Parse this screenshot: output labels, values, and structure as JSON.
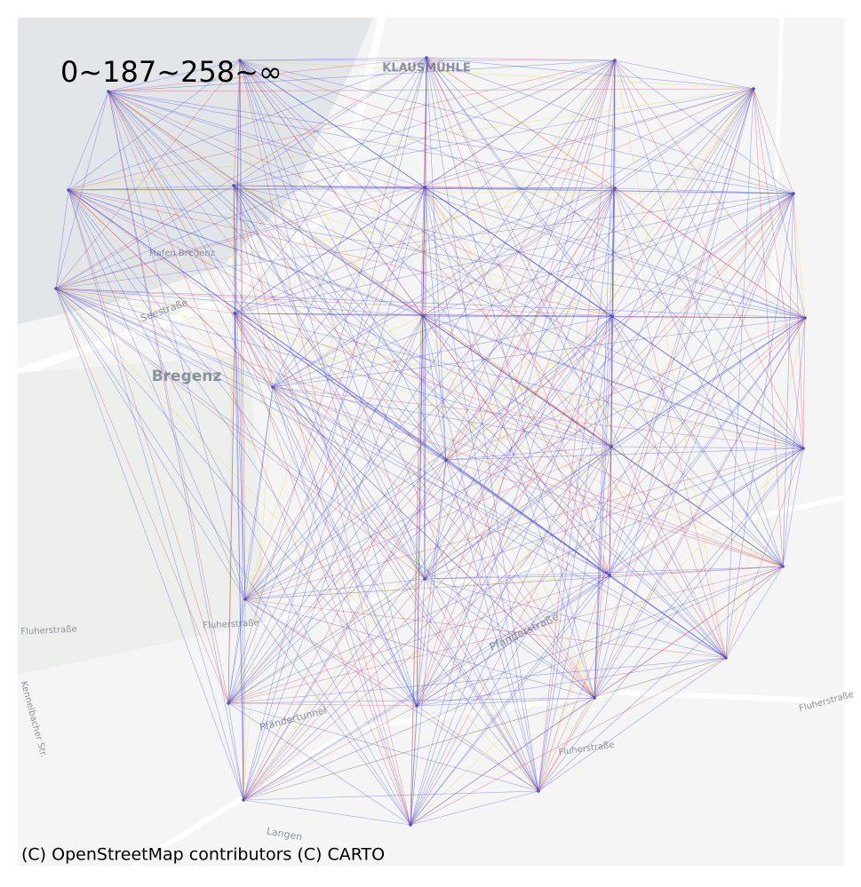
{
  "map": {
    "title": "0~187~258~∞",
    "attribution": "(C) OpenStreetMap contributors (C) CARTO",
    "places": [
      "KLAUSMÜHLE",
      "Bregenz",
      "Hafen Bregenz",
      "Seestraße",
      "Fluherstraße",
      "Fluherstraße",
      "Pfänderstraße",
      "Fluherstraße",
      "Langen",
      "Kennelbacher Str.",
      "Pfändertunnel",
      "Fluherstraße"
    ]
  }
}
